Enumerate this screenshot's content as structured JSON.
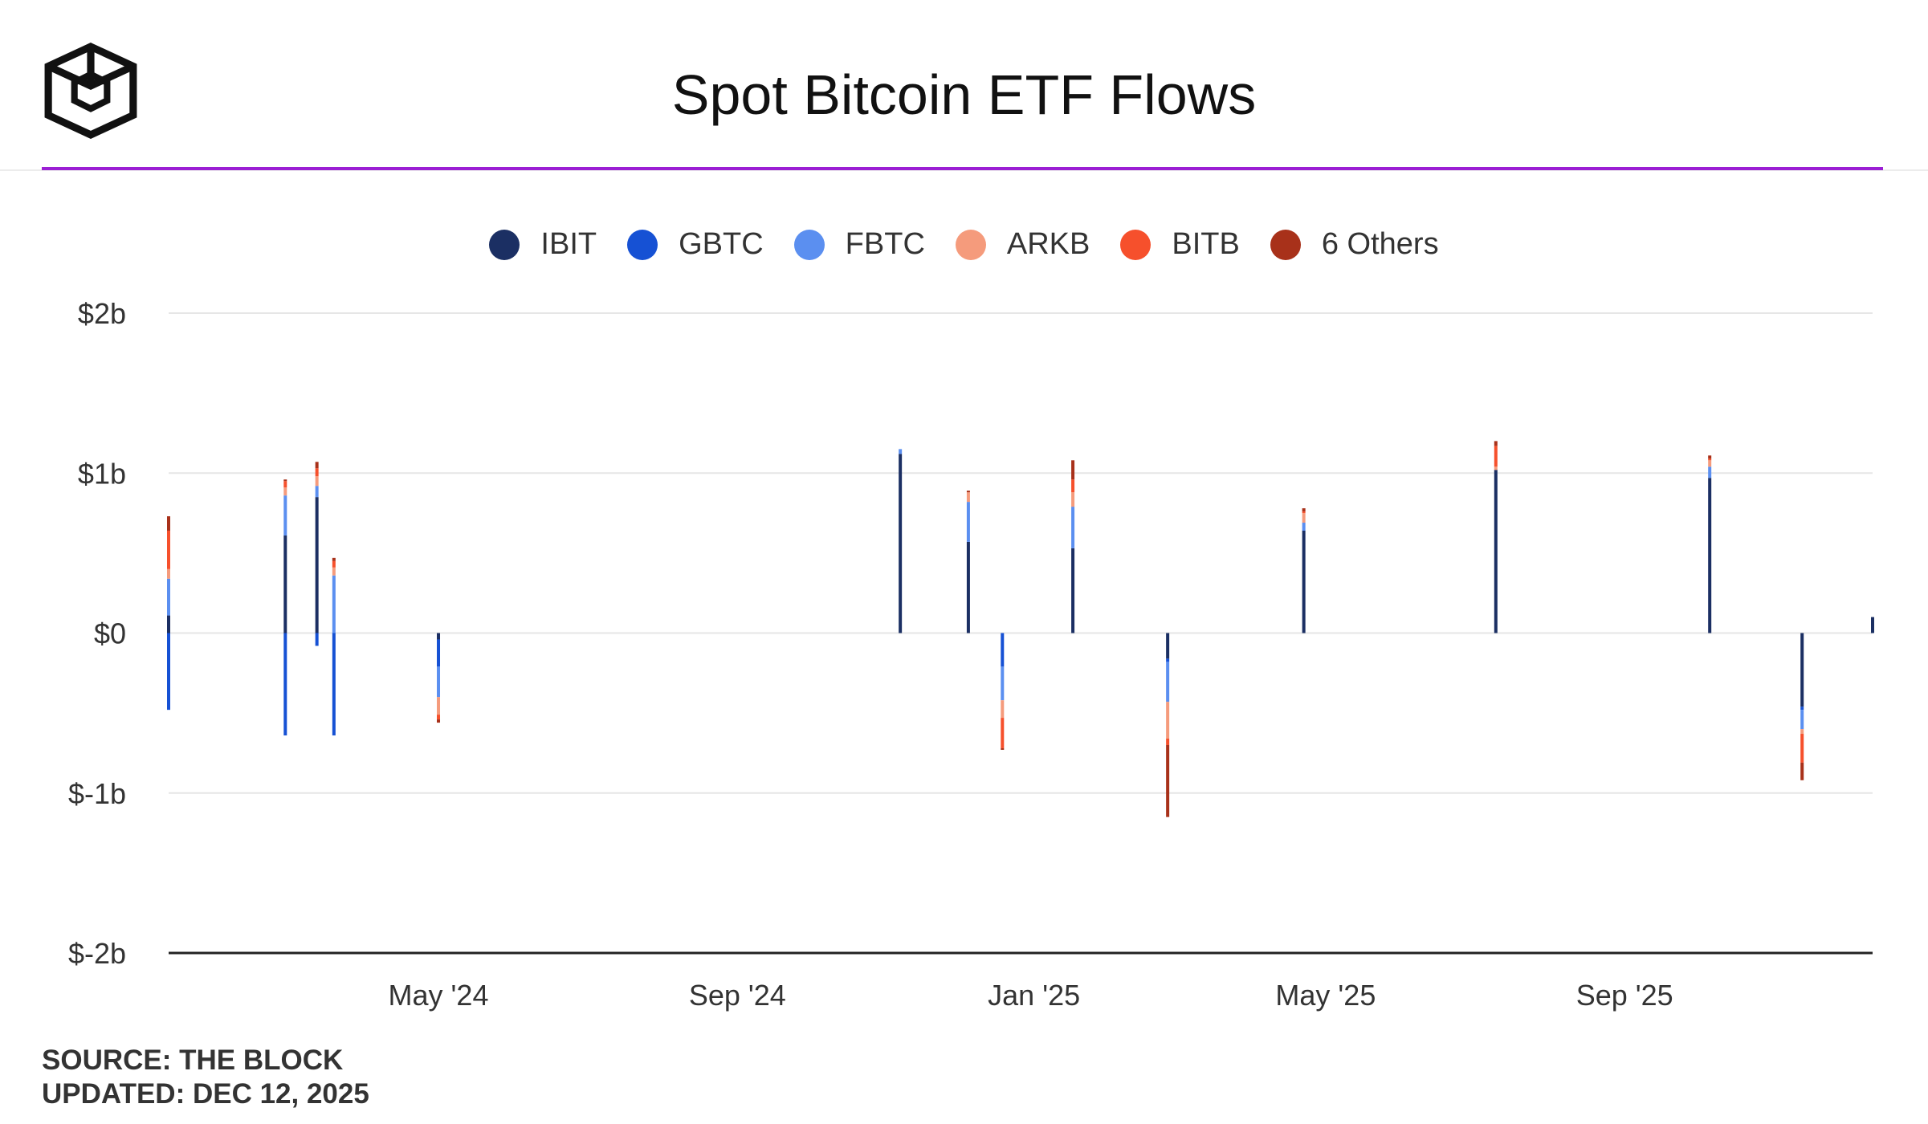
{
  "title": "Spot Bitcoin ETF Flows",
  "legend": [
    {
      "label": "IBIT",
      "color": "#1b2f63"
    },
    {
      "label": "GBTC",
      "color": "#1651d4"
    },
    {
      "label": "FBTC",
      "color": "#5b8ff0"
    },
    {
      "label": "ARKB",
      "color": "#f59b7c"
    },
    {
      "label": "BITB",
      "color": "#f6502c"
    },
    {
      "label": "6 Others",
      "color": "#a8311a"
    }
  ],
  "source": {
    "source_line": "SOURCE: THE BLOCK",
    "updated_line": "UPDATED: DEC 12, 2025"
  },
  "chart_data": {
    "type": "bar",
    "stacked": true,
    "title": "Spot Bitcoin ETF Flows",
    "x_range": [
      "2024-01-11",
      "2025-12-12"
    ],
    "x_tick_labels": [
      {
        "date": "2024-05-01",
        "label": "May '24"
      },
      {
        "date": "2024-09-01",
        "label": "Sep '24"
      },
      {
        "date": "2025-01-01",
        "label": "Jan '25"
      },
      {
        "date": "2025-05-01",
        "label": "May '25"
      },
      {
        "date": "2025-09-01",
        "label": "Sep '25"
      }
    ],
    "y_ticks": [
      {
        "value": 2,
        "label": "$2b"
      },
      {
        "value": 1,
        "label": "$1b"
      },
      {
        "value": 0,
        "label": "$0"
      },
      {
        "value": -1,
        "label": "$-1b"
      },
      {
        "value": -2,
        "label": "$-2b"
      }
    ],
    "ylim": [
      -2,
      2
    ],
    "y_unit": "USD billions",
    "grid": true,
    "legend_position": "top-center",
    "series_names": [
      "IBIT",
      "GBTC",
      "FBTC",
      "ARKB",
      "BITB",
      "6 Others"
    ],
    "x": [
      "2024-01-11",
      "2024-02-28",
      "2024-03-12",
      "2024-03-19",
      "2024-05-01",
      "2024-11-07",
      "2024-12-05",
      "2024-12-19",
      "2025-01-17",
      "2025-02-25",
      "2025-04-22",
      "2025-07-10",
      "2025-10-06",
      "2025-11-13",
      "2025-12-12"
    ],
    "series": [
      {
        "name": "IBIT",
        "values": [
          0.11,
          0.61,
          0.85,
          0.0,
          -0.04,
          1.12,
          0.57,
          0.0,
          0.53,
          -0.16,
          0.64,
          1.02,
          0.97,
          -0.46,
          0.1
        ]
      },
      {
        "name": "GBTC",
        "values": [
          -0.48,
          -0.64,
          -0.08,
          -0.64,
          -0.17,
          0.0,
          0.0,
          -0.21,
          0.0,
          -0.02,
          0.0,
          0.0,
          0.0,
          -0.02,
          0.0
        ]
      },
      {
        "name": "FBTC",
        "values": [
          0.23,
          0.25,
          0.07,
          0.36,
          -0.19,
          0.03,
          0.25,
          -0.21,
          0.26,
          -0.25,
          0.05,
          0.0,
          0.07,
          -0.12,
          0.0
        ]
      },
      {
        "name": "ARKB",
        "values": [
          0.06,
          0.05,
          0.06,
          0.05,
          -0.11,
          0.0,
          0.06,
          -0.11,
          0.09,
          -0.23,
          0.06,
          0.02,
          0.04,
          -0.03,
          0.0
        ]
      },
      {
        "name": "BITB",
        "values": [
          0.24,
          0.04,
          0.05,
          0.04,
          -0.03,
          0.0,
          0.0,
          -0.19,
          0.08,
          -0.04,
          0.01,
          0.13,
          0.01,
          -0.18,
          0.0
        ]
      },
      {
        "name": "6 Others",
        "values": [
          0.09,
          0.01,
          0.04,
          0.02,
          -0.02,
          0.0,
          0.01,
          -0.01,
          0.12,
          -0.45,
          0.02,
          0.03,
          0.02,
          -0.11,
          0.0
        ]
      }
    ]
  }
}
